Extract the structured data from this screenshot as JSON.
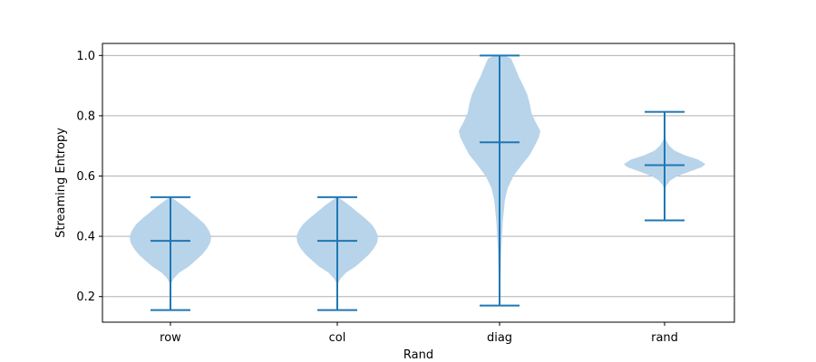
{
  "chart_data": {
    "type": "violin",
    "xlabel": "Rand",
    "ylabel": "Streaming Entropy",
    "categories": [
      "row",
      "col",
      "diag",
      "rand"
    ],
    "ylim": [
      0.115,
      1.04
    ],
    "yticks": [
      0.2,
      0.4,
      0.6,
      0.8,
      1.0
    ],
    "ytick_labels": [
      "0.2",
      "0.4",
      "0.6",
      "0.8",
      "1.0"
    ],
    "grid": "y",
    "colors": {
      "body": "#b8d4ea",
      "line": "#1f77b4",
      "grid": "#b0b0b0"
    },
    "violins": [
      {
        "category": "row",
        "min": 0.155,
        "max": 0.53,
        "mean": 0.385,
        "halfwidth": 0.25,
        "profile": [
          [
            0.24,
            0.0
          ],
          [
            0.26,
            0.08
          ],
          [
            0.28,
            0.22
          ],
          [
            0.3,
            0.45
          ],
          [
            0.32,
            0.62
          ],
          [
            0.34,
            0.78
          ],
          [
            0.36,
            0.9
          ],
          [
            0.38,
            0.98
          ],
          [
            0.4,
            1.0
          ],
          [
            0.42,
            0.94
          ],
          [
            0.44,
            0.84
          ],
          [
            0.46,
            0.68
          ],
          [
            0.48,
            0.5
          ],
          [
            0.5,
            0.32
          ],
          [
            0.52,
            0.12
          ],
          [
            0.53,
            0.0
          ]
        ]
      },
      {
        "category": "col",
        "min": 0.155,
        "max": 0.53,
        "mean": 0.385,
        "halfwidth": 0.25,
        "profile": [
          [
            0.24,
            0.0
          ],
          [
            0.26,
            0.08
          ],
          [
            0.28,
            0.22
          ],
          [
            0.3,
            0.45
          ],
          [
            0.32,
            0.62
          ],
          [
            0.34,
            0.78
          ],
          [
            0.36,
            0.9
          ],
          [
            0.38,
            0.98
          ],
          [
            0.4,
            1.0
          ],
          [
            0.42,
            0.94
          ],
          [
            0.44,
            0.84
          ],
          [
            0.46,
            0.68
          ],
          [
            0.48,
            0.5
          ],
          [
            0.5,
            0.32
          ],
          [
            0.52,
            0.12
          ],
          [
            0.53,
            0.0
          ]
        ]
      },
      {
        "category": "diag",
        "min": 0.17,
        "max": 1.0,
        "mean": 0.712,
        "halfwidth": 0.25,
        "profile": [
          [
            0.17,
            0.0
          ],
          [
            0.25,
            0.02
          ],
          [
            0.35,
            0.04
          ],
          [
            0.45,
            0.08
          ],
          [
            0.52,
            0.13
          ],
          [
            0.56,
            0.2
          ],
          [
            0.6,
            0.34
          ],
          [
            0.64,
            0.56
          ],
          [
            0.67,
            0.74
          ],
          [
            0.7,
            0.86
          ],
          [
            0.73,
            0.97
          ],
          [
            0.75,
            1.0
          ],
          [
            0.78,
            0.88
          ],
          [
            0.81,
            0.78
          ],
          [
            0.84,
            0.74
          ],
          [
            0.87,
            0.68
          ],
          [
            0.9,
            0.58
          ],
          [
            0.93,
            0.47
          ],
          [
            0.96,
            0.38
          ],
          [
            0.99,
            0.28
          ],
          [
            1.0,
            0.12
          ]
        ]
      },
      {
        "category": "rand",
        "min": 0.453,
        "max": 0.813,
        "mean": 0.636,
        "halfwidth": 0.25,
        "profile": [
          [
            0.555,
            0.0
          ],
          [
            0.57,
            0.05
          ],
          [
            0.585,
            0.14
          ],
          [
            0.6,
            0.32
          ],
          [
            0.615,
            0.62
          ],
          [
            0.63,
            0.92
          ],
          [
            0.64,
            1.0
          ],
          [
            0.655,
            0.82
          ],
          [
            0.67,
            0.48
          ],
          [
            0.685,
            0.24
          ],
          [
            0.7,
            0.12
          ],
          [
            0.715,
            0.05
          ],
          [
            0.73,
            0.0
          ]
        ]
      }
    ]
  }
}
